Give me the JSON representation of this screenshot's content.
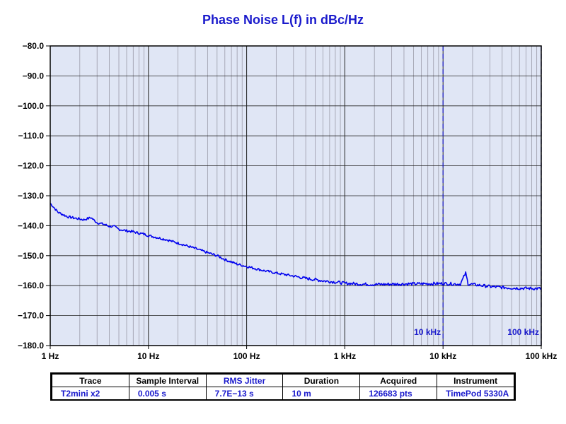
{
  "chart_data": {
    "type": "line",
    "title": "Phase Noise L(f) in dBc/Hz",
    "xscale": "log",
    "xlim": [
      1,
      100000
    ],
    "ylim": [
      -180,
      -80
    ],
    "y_ticks": [
      "−80.0",
      "−90.0",
      "−100.0",
      "−110.0",
      "−120.0",
      "−130.0",
      "−140.0",
      "−150.0",
      "−160.0",
      "−170.0",
      "−180.0"
    ],
    "x_ticks": [
      "1 Hz",
      "10 Hz",
      "100 Hz",
      "1 kHz",
      "10 kHz",
      "100 kHz"
    ],
    "markers": [
      {
        "x": 10000,
        "label": "10 kHz"
      },
      {
        "x": 100000,
        "label": "100 kHz"
      }
    ],
    "grid": true,
    "colors": {
      "background": "#e0e6f5",
      "trace": "#0000ee",
      "title": "#1a1acc"
    },
    "series": [
      {
        "x": [
          1,
          1.2,
          1.5,
          1.8,
          2.2,
          2.6,
          3,
          3.5,
          4,
          4.5,
          5,
          6,
          7,
          8,
          9,
          10,
          15,
          20,
          30,
          40,
          50,
          60,
          80,
          100,
          150,
          200,
          300,
          400,
          500,
          600,
          800,
          1000,
          1500,
          2000,
          3000,
          5000,
          10000,
          15000,
          17000,
          18000,
          20000,
          30000,
          50000,
          100000
        ],
        "y": [
          -132.5,
          -135.5,
          -137,
          -137.5,
          -138,
          -137.3,
          -139,
          -139.5,
          -140.2,
          -140.3,
          -141.2,
          -141.7,
          -142,
          -142.5,
          -142.8,
          -143.3,
          -144.6,
          -145.8,
          -147.6,
          -149,
          -150,
          -151.3,
          -152.8,
          -153.6,
          -155,
          -155.8,
          -156.8,
          -157.6,
          -158,
          -158.4,
          -158.8,
          -159.2,
          -159.5,
          -159.6,
          -159.5,
          -159.4,
          -159.3,
          -159.5,
          -155.8,
          -159.4,
          -159.6,
          -160.3,
          -160.8,
          -161
        ]
      }
    ]
  },
  "table": {
    "headers": [
      "Trace",
      "Sample Interval",
      "RMS Jitter",
      "Duration",
      "Acquired",
      "Instrument"
    ],
    "values": [
      "T2mini x2",
      "0.005 s",
      "7.7E−13 s",
      "10 m",
      "126683 pts",
      "TimePod 5330A"
    ]
  }
}
